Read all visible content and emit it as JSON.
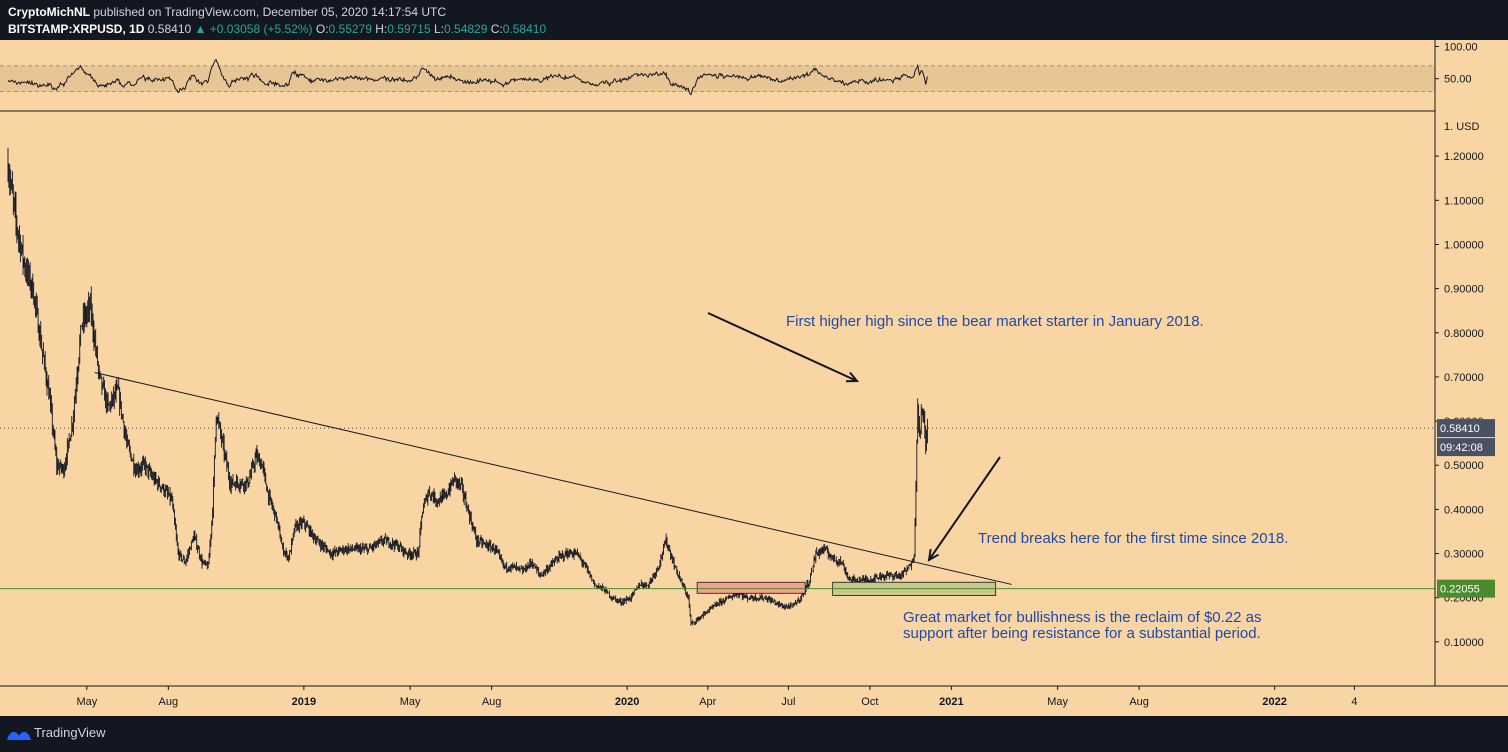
{
  "header": {
    "author": "CryptoMichNL",
    "published_text": "published on TradingView.com, December 05, 2020 14:17:54 UTC",
    "symbol": "BITSTAMP:XRPUSD, 1D",
    "last": "0.58410",
    "change": "+0.03058 (+5.52%)",
    "o_label": "O:",
    "o": "0.55279",
    "h_label": "H:",
    "h": "0.59715",
    "l_label": "L:",
    "l": "0.54829",
    "c_label": "C:",
    "c": "0.58410"
  },
  "footer": {
    "brand": "TradingView"
  },
  "colors": {
    "background": "#f8d5a3",
    "candle": "#131722",
    "support_line": "#4c8a2e",
    "red_zone": "#f4a08a",
    "green_zone": "#c8c88a",
    "annotation": "#1f4aa8",
    "rsi_band": "#e8c595"
  },
  "chart_data": {
    "type": "candlestick",
    "symbol": "XRPUSD",
    "timeframe": "1D",
    "y_unit": "USD",
    "ylim": [
      0,
      1.3
    ],
    "y_ticks": [
      "1.20000",
      "1.10000",
      "1.00000",
      "0.90000",
      "0.80000",
      "0.70000",
      "0.60000",
      "0.50000",
      "0.40000",
      "0.30000",
      "0.20000",
      "0.10000"
    ],
    "y_ticks_values": [
      1.2,
      1.1,
      1.0,
      0.9,
      0.8,
      0.7,
      0.6,
      0.5,
      0.4,
      0.3,
      0.2,
      0.1
    ],
    "y_top_label": "1. USD",
    "x_range": [
      "2018-02-01",
      "2022-07-01"
    ],
    "x_ticks": [
      {
        "date": "2018-05-01",
        "label": "May"
      },
      {
        "date": "2018-08-01",
        "label": "Aug"
      },
      {
        "date": "2019-01-01",
        "label": "2019"
      },
      {
        "date": "2019-05-01",
        "label": "May"
      },
      {
        "date": "2019-08-01",
        "label": "Aug"
      },
      {
        "date": "2020-01-01",
        "label": "2020"
      },
      {
        "date": "2020-04-01",
        "label": "Apr"
      },
      {
        "date": "2020-07-01",
        "label": "Jul"
      },
      {
        "date": "2020-10-01",
        "label": "Oct"
      },
      {
        "date": "2021-01-01",
        "label": "2021"
      },
      {
        "date": "2021-05-01",
        "label": "May"
      },
      {
        "date": "2021-08-01",
        "label": "Aug"
      },
      {
        "date": "2022-01-01",
        "label": "2022"
      },
      {
        "date": "2022-04-01",
        "label": "4"
      }
    ],
    "price_path": [
      [
        "2018-02-01",
        1.18
      ],
      [
        "2018-02-10",
        1.05
      ],
      [
        "2018-02-20",
        0.95
      ],
      [
        "2018-03-01",
        0.9
      ],
      [
        "2018-03-10",
        0.78
      ],
      [
        "2018-03-20",
        0.65
      ],
      [
        "2018-03-28",
        0.5
      ],
      [
        "2018-04-05",
        0.49
      ],
      [
        "2018-04-15",
        0.6
      ],
      [
        "2018-04-25",
        0.82
      ],
      [
        "2018-05-05",
        0.86
      ],
      [
        "2018-05-15",
        0.7
      ],
      [
        "2018-05-25",
        0.63
      ],
      [
        "2018-06-05",
        0.67
      ],
      [
        "2018-06-15",
        0.55
      ],
      [
        "2018-06-25",
        0.49
      ],
      [
        "2018-07-05",
        0.5
      ],
      [
        "2018-07-15",
        0.47
      ],
      [
        "2018-07-25",
        0.45
      ],
      [
        "2018-08-05",
        0.42
      ],
      [
        "2018-08-12",
        0.3
      ],
      [
        "2018-08-20",
        0.28
      ],
      [
        "2018-08-30",
        0.34
      ],
      [
        "2018-09-08",
        0.28
      ],
      [
        "2018-09-15",
        0.27
      ],
      [
        "2018-09-20",
        0.4
      ],
      [
        "2018-09-24",
        0.62
      ],
      [
        "2018-10-01",
        0.55
      ],
      [
        "2018-10-10",
        0.46
      ],
      [
        "2018-10-20",
        0.46
      ],
      [
        "2018-10-30",
        0.46
      ],
      [
        "2018-11-08",
        0.52
      ],
      [
        "2018-11-15",
        0.5
      ],
      [
        "2018-11-22",
        0.43
      ],
      [
        "2018-12-01",
        0.38
      ],
      [
        "2018-12-08",
        0.31
      ],
      [
        "2018-12-15",
        0.29
      ],
      [
        "2018-12-22",
        0.36
      ],
      [
        "2019-01-01",
        0.37
      ],
      [
        "2019-01-15",
        0.33
      ],
      [
        "2019-02-01",
        0.3
      ],
      [
        "2019-02-15",
        0.31
      ],
      [
        "2019-03-01",
        0.31
      ],
      [
        "2019-03-15",
        0.31
      ],
      [
        "2019-04-01",
        0.33
      ],
      [
        "2019-04-15",
        0.32
      ],
      [
        "2019-04-28",
        0.3
      ],
      [
        "2019-05-10",
        0.3
      ],
      [
        "2019-05-15",
        0.4
      ],
      [
        "2019-05-22",
        0.44
      ],
      [
        "2019-06-01",
        0.42
      ],
      [
        "2019-06-10",
        0.43
      ],
      [
        "2019-06-20",
        0.47
      ],
      [
        "2019-06-28",
        0.45
      ],
      [
        "2019-07-05",
        0.4
      ],
      [
        "2019-07-15",
        0.33
      ],
      [
        "2019-07-25",
        0.32
      ],
      [
        "2019-08-05",
        0.31
      ],
      [
        "2019-08-15",
        0.27
      ],
      [
        "2019-08-25",
        0.27
      ],
      [
        "2019-09-05",
        0.26
      ],
      [
        "2019-09-15",
        0.28
      ],
      [
        "2019-09-25",
        0.25
      ],
      [
        "2019-10-05",
        0.27
      ],
      [
        "2019-10-15",
        0.29
      ],
      [
        "2019-10-25",
        0.3
      ],
      [
        "2019-11-05",
        0.3
      ],
      [
        "2019-11-15",
        0.27
      ],
      [
        "2019-11-25",
        0.23
      ],
      [
        "2019-12-05",
        0.22
      ],
      [
        "2019-12-15",
        0.2
      ],
      [
        "2019-12-25",
        0.19
      ],
      [
        "2020-01-05",
        0.2
      ],
      [
        "2020-01-15",
        0.23
      ],
      [
        "2020-01-25",
        0.23
      ],
      [
        "2020-02-05",
        0.27
      ],
      [
        "2020-02-14",
        0.33
      ],
      [
        "2020-02-22",
        0.28
      ],
      [
        "2020-03-01",
        0.24
      ],
      [
        "2020-03-10",
        0.2
      ],
      [
        "2020-03-13",
        0.14
      ],
      [
        "2020-03-20",
        0.15
      ],
      [
        "2020-04-01",
        0.17
      ],
      [
        "2020-04-15",
        0.19
      ],
      [
        "2020-04-25",
        0.2
      ],
      [
        "2020-05-05",
        0.21
      ],
      [
        "2020-05-15",
        0.2
      ],
      [
        "2020-05-25",
        0.2
      ],
      [
        "2020-06-05",
        0.2
      ],
      [
        "2020-06-15",
        0.19
      ],
      [
        "2020-06-25",
        0.18
      ],
      [
        "2020-07-05",
        0.18
      ],
      [
        "2020-07-15",
        0.2
      ],
      [
        "2020-07-25",
        0.24
      ],
      [
        "2020-08-01",
        0.3
      ],
      [
        "2020-08-10",
        0.31
      ],
      [
        "2020-08-20",
        0.29
      ],
      [
        "2020-08-30",
        0.28
      ],
      [
        "2020-09-08",
        0.24
      ],
      [
        "2020-09-20",
        0.24
      ],
      [
        "2020-10-01",
        0.24
      ],
      [
        "2020-10-15",
        0.25
      ],
      [
        "2020-10-25",
        0.25
      ],
      [
        "2020-11-05",
        0.25
      ],
      [
        "2020-11-15",
        0.27
      ],
      [
        "2020-11-20",
        0.3
      ],
      [
        "2020-11-22",
        0.45
      ],
      [
        "2020-11-24",
        0.65
      ],
      [
        "2020-11-26",
        0.56
      ],
      [
        "2020-11-28",
        0.62
      ],
      [
        "2020-12-01",
        0.6
      ],
      [
        "2020-12-03",
        0.55
      ],
      [
        "2020-12-05",
        0.5841
      ]
    ],
    "horizontal_lines": [
      {
        "name": "support",
        "price": 0.22055,
        "label": "0.22055"
      },
      {
        "name": "last-price",
        "price": 0.5841,
        "label": "0.58410"
      }
    ],
    "countdown_label": "09:42:08",
    "trendline": {
      "from": [
        "2018-05-10",
        0.71
      ],
      "to": [
        "2021-03-10",
        0.23
      ]
    },
    "zones": [
      {
        "name": "red-zone",
        "from": [
          "2020-03-20",
          0.235
        ],
        "to": [
          "2020-07-20",
          0.21
        ]
      },
      {
        "name": "green-zone",
        "from": [
          "2020-08-20",
          0.235
        ],
        "to": [
          "2021-02-20",
          0.205
        ]
      }
    ],
    "annotations": {
      "first_higher_high": "First higher high since the bear market starter in January 2018.",
      "trend_break": "Trend breaks here for the first time since 2018.",
      "reclaim_line1": "Great market for bullishness is the reclaim of $0.22 as",
      "reclaim_line2": "support after being resistance for a substantial period."
    },
    "rsi": {
      "ylim": [
        0,
        110
      ],
      "y_ticks": [
        "100.00",
        "50.00"
      ],
      "y_ticks_values": [
        100,
        50
      ],
      "band": [
        30,
        70
      ]
    }
  }
}
